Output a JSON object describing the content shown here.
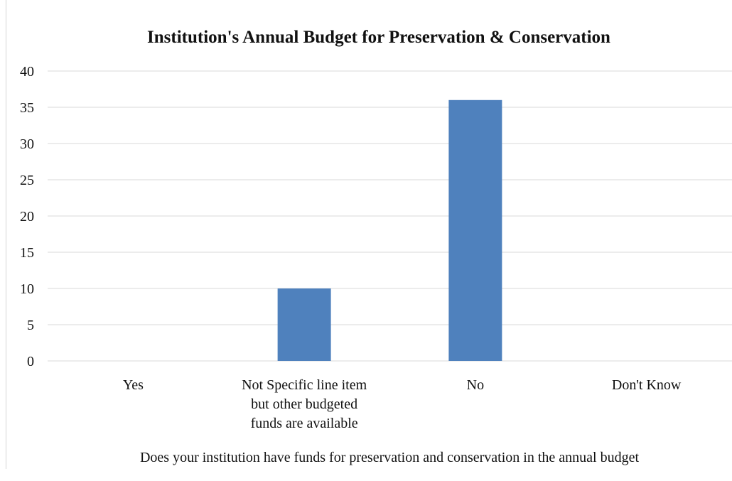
{
  "chart_data": {
    "type": "bar",
    "title": "Institution's Annual Budget for Preservation & Conservation",
    "xlabel": "Does your institution have funds for preservation and conservation in the annual budget",
    "ylabel": "",
    "categories": [
      "Yes",
      "Not Specific line item\nbut other budgeted\nfunds are available",
      "No",
      "Don't Know"
    ],
    "values": [
      0,
      10,
      36,
      0
    ],
    "ylim": [
      0,
      40
    ],
    "yticks": [
      0,
      5,
      10,
      15,
      20,
      25,
      30,
      35,
      40
    ],
    "grid": true,
    "legend": "none",
    "bar_color": "#4f81bd",
    "grid_color": "#d9d9d9",
    "axis_color": "#d9d9d9"
  }
}
